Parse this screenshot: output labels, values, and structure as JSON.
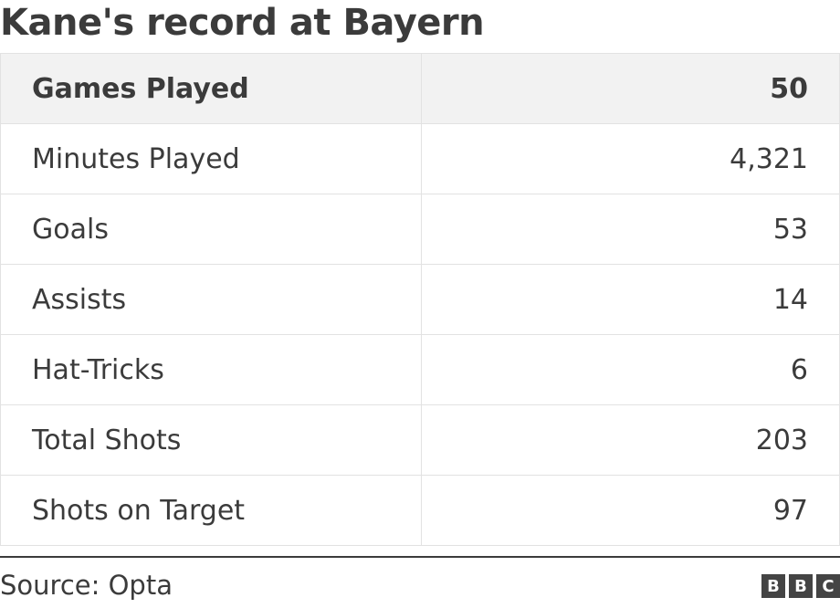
{
  "title": "Kane's record at Bayern",
  "source": "Source: Opta",
  "logo_letters": [
    "B",
    "B",
    "C"
  ],
  "chart_data": {
    "type": "table",
    "title": "Kane's record at Bayern",
    "header": [
      "Games Played",
      "50"
    ],
    "rows": [
      [
        "Minutes Played",
        "4,321"
      ],
      [
        "Goals",
        "53"
      ],
      [
        "Assists",
        "14"
      ],
      [
        "Hat-Tricks",
        "6"
      ],
      [
        "Total Shots",
        "203"
      ],
      [
        "Shots on Target",
        "97"
      ]
    ]
  }
}
